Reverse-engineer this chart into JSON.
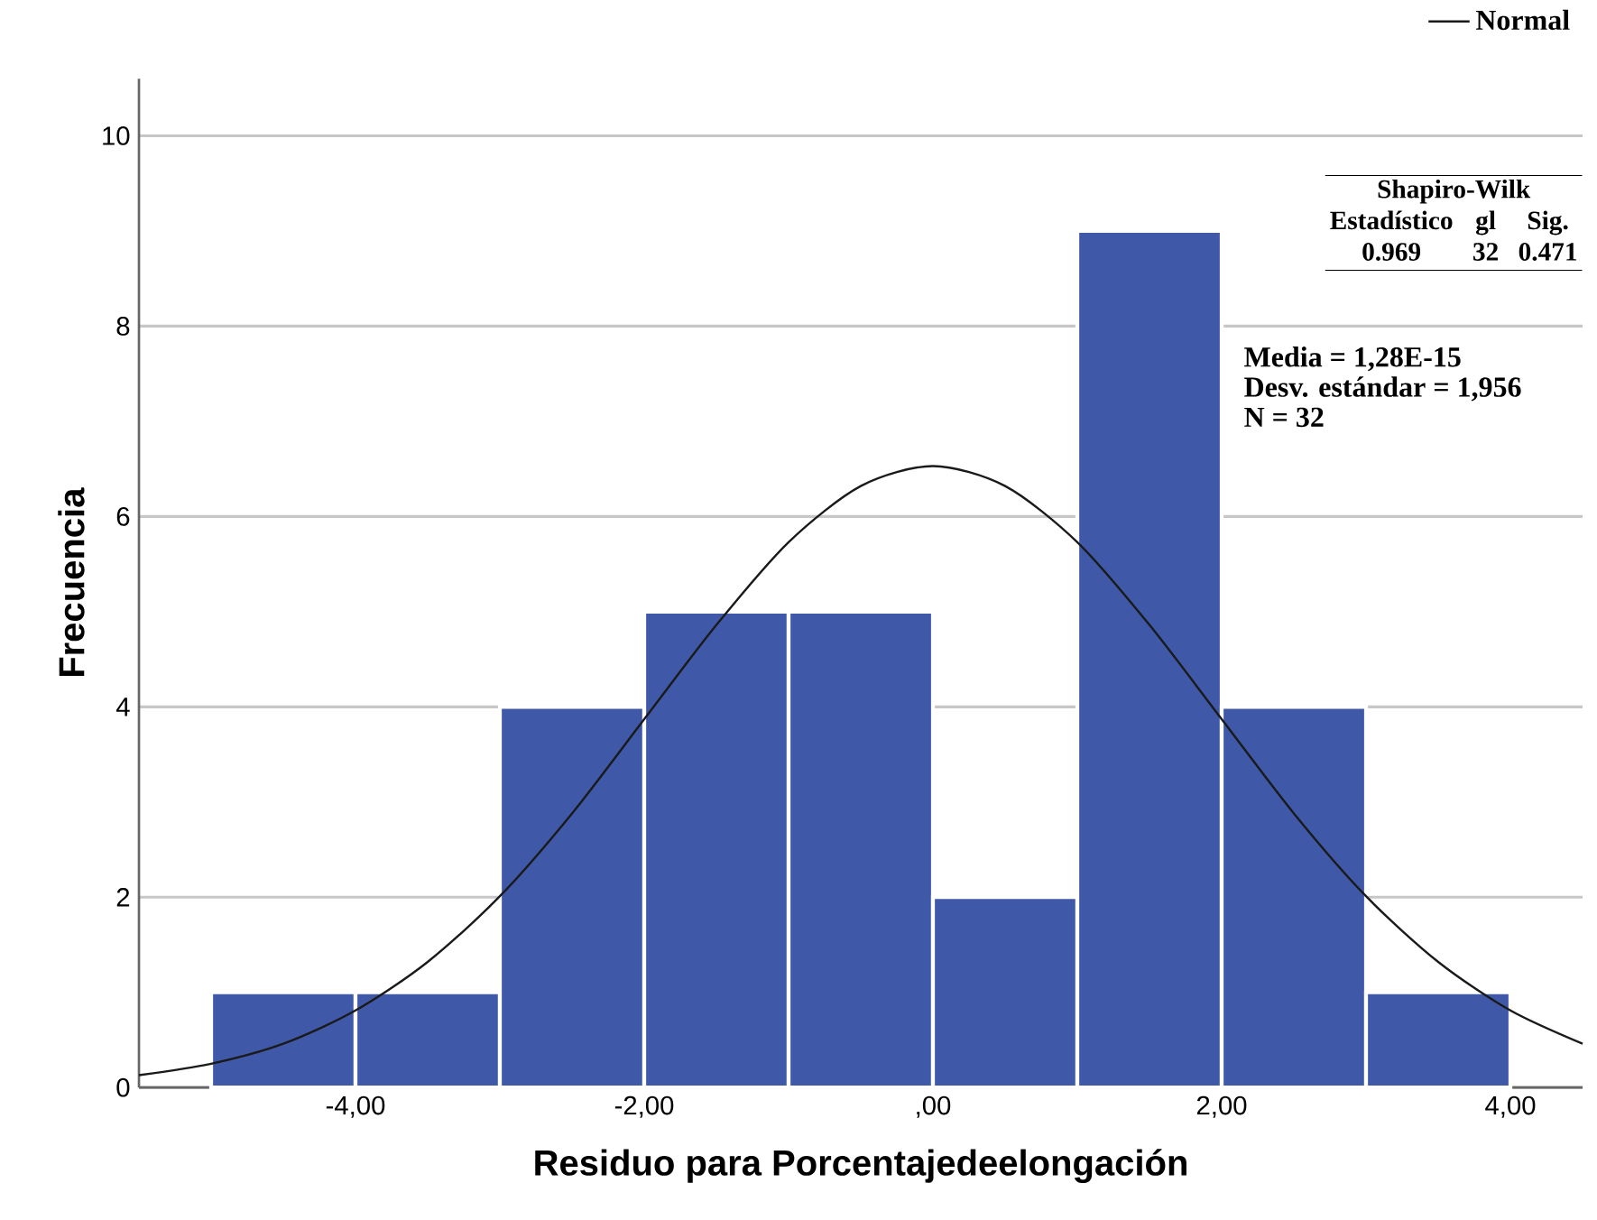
{
  "chart_data": {
    "type": "histogram",
    "xlabel": "Residuo para Porcentajedeelongación",
    "ylabel": "Frecuencia",
    "bins": [
      -5,
      -4,
      -3,
      -2,
      -1,
      0,
      1,
      2,
      3,
      4
    ],
    "values": [
      1,
      1,
      4,
      5,
      5,
      2,
      9,
      4,
      1
    ],
    "color": "#3f59a8",
    "series": [
      {
        "name": "Normal",
        "type": "line",
        "color": "#1a1a1a",
        "x": [
          -5.5,
          -5,
          -4.5,
          -4,
          -3.5,
          -3,
          -2.5,
          -2,
          -1.5,
          -1,
          -0.5,
          0,
          0.5,
          1,
          1.5,
          2,
          2.5,
          3,
          3.5,
          4,
          4.5
        ],
        "values": [
          0.13,
          0.25,
          0.46,
          0.81,
          1.32,
          2.01,
          2.88,
          3.87,
          4.86,
          5.73,
          6.32,
          6.53,
          6.32,
          5.73,
          4.86,
          3.87,
          2.88,
          2.01,
          1.32,
          0.81,
          0.46
        ]
      }
    ],
    "xlim": [
      -5.5,
      4.5
    ],
    "ylim": [
      0,
      10.6
    ],
    "xticks": [
      {
        "value": -4,
        "label": "-4,00"
      },
      {
        "value": -2,
        "label": "-2,00"
      },
      {
        "value": 0,
        "label": ",00"
      },
      {
        "value": 2,
        "label": "2,00"
      },
      {
        "value": 4,
        "label": "4,00"
      }
    ],
    "yticks": [
      0,
      2,
      4,
      6,
      8,
      10
    ],
    "grid": "y",
    "legend": "top right",
    "annotations": [
      "Shapiro-Wilk",
      "Estadístico",
      "gl",
      "Sig.",
      "0.969",
      "32",
      "0.471",
      "Media = 1,28E-15",
      "Desv. estándar = 1,956",
      "N = 32"
    ]
  }
}
